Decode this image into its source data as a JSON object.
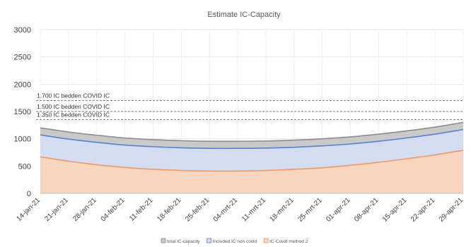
{
  "chart_data": {
    "type": "area",
    "title": "Estimate IC-Capacity",
    "xlabel": "",
    "ylabel": "",
    "ylim": [
      0,
      3000
    ],
    "y_ticks": [
      0,
      500,
      1000,
      1500,
      2000,
      2500,
      3000
    ],
    "grid": true,
    "legend_position": "bottom",
    "x": [
      "14-jan-21",
      "21-jan-21",
      "28-jan-21",
      "04-feb-21",
      "11-feb-21",
      "18-feb-21",
      "25-feb-21",
      "04-mrt-21",
      "11-mrt-21",
      "18-mrt-21",
      "25-mrt-21",
      "01-apr-21",
      "08-apr-21",
      "15-apr-21",
      "22-apr-21",
      "29-apr-21"
    ],
    "series": [
      {
        "name": "total IC-capacity",
        "color": "#c9c9c9",
        "line_color": "#8c8c8c",
        "values": [
          1200,
          1125,
          1065,
          1015,
          985,
          965,
          955,
          955,
          960,
          975,
          1000,
          1035,
          1085,
          1145,
          1215,
          1300
        ]
      },
      {
        "name": "Included IC non covid",
        "color": "#d4dcf2",
        "line_color": "#5b80cf",
        "values": [
          1070,
          995,
          935,
          885,
          855,
          835,
          825,
          825,
          830,
          845,
          870,
          905,
          955,
          1015,
          1085,
          1170
        ]
      },
      {
        "name": "IC-Covid method 2",
        "color": "#f8d5bf",
        "line_color": "#ed9a6b",
        "values": [
          670,
          590,
          525,
          475,
          440,
          420,
          410,
          410,
          420,
          440,
          470,
          515,
          570,
          635,
          705,
          790
        ]
      }
    ],
    "reference_lines": [
      {
        "value": 1700,
        "label": "1.700 IC bedden COVID IC"
      },
      {
        "value": 1500,
        "label": "1.500 IC bedden COVID IC"
      },
      {
        "value": 1350,
        "label": "1.350 IC bedden COVID IC"
      }
    ]
  }
}
